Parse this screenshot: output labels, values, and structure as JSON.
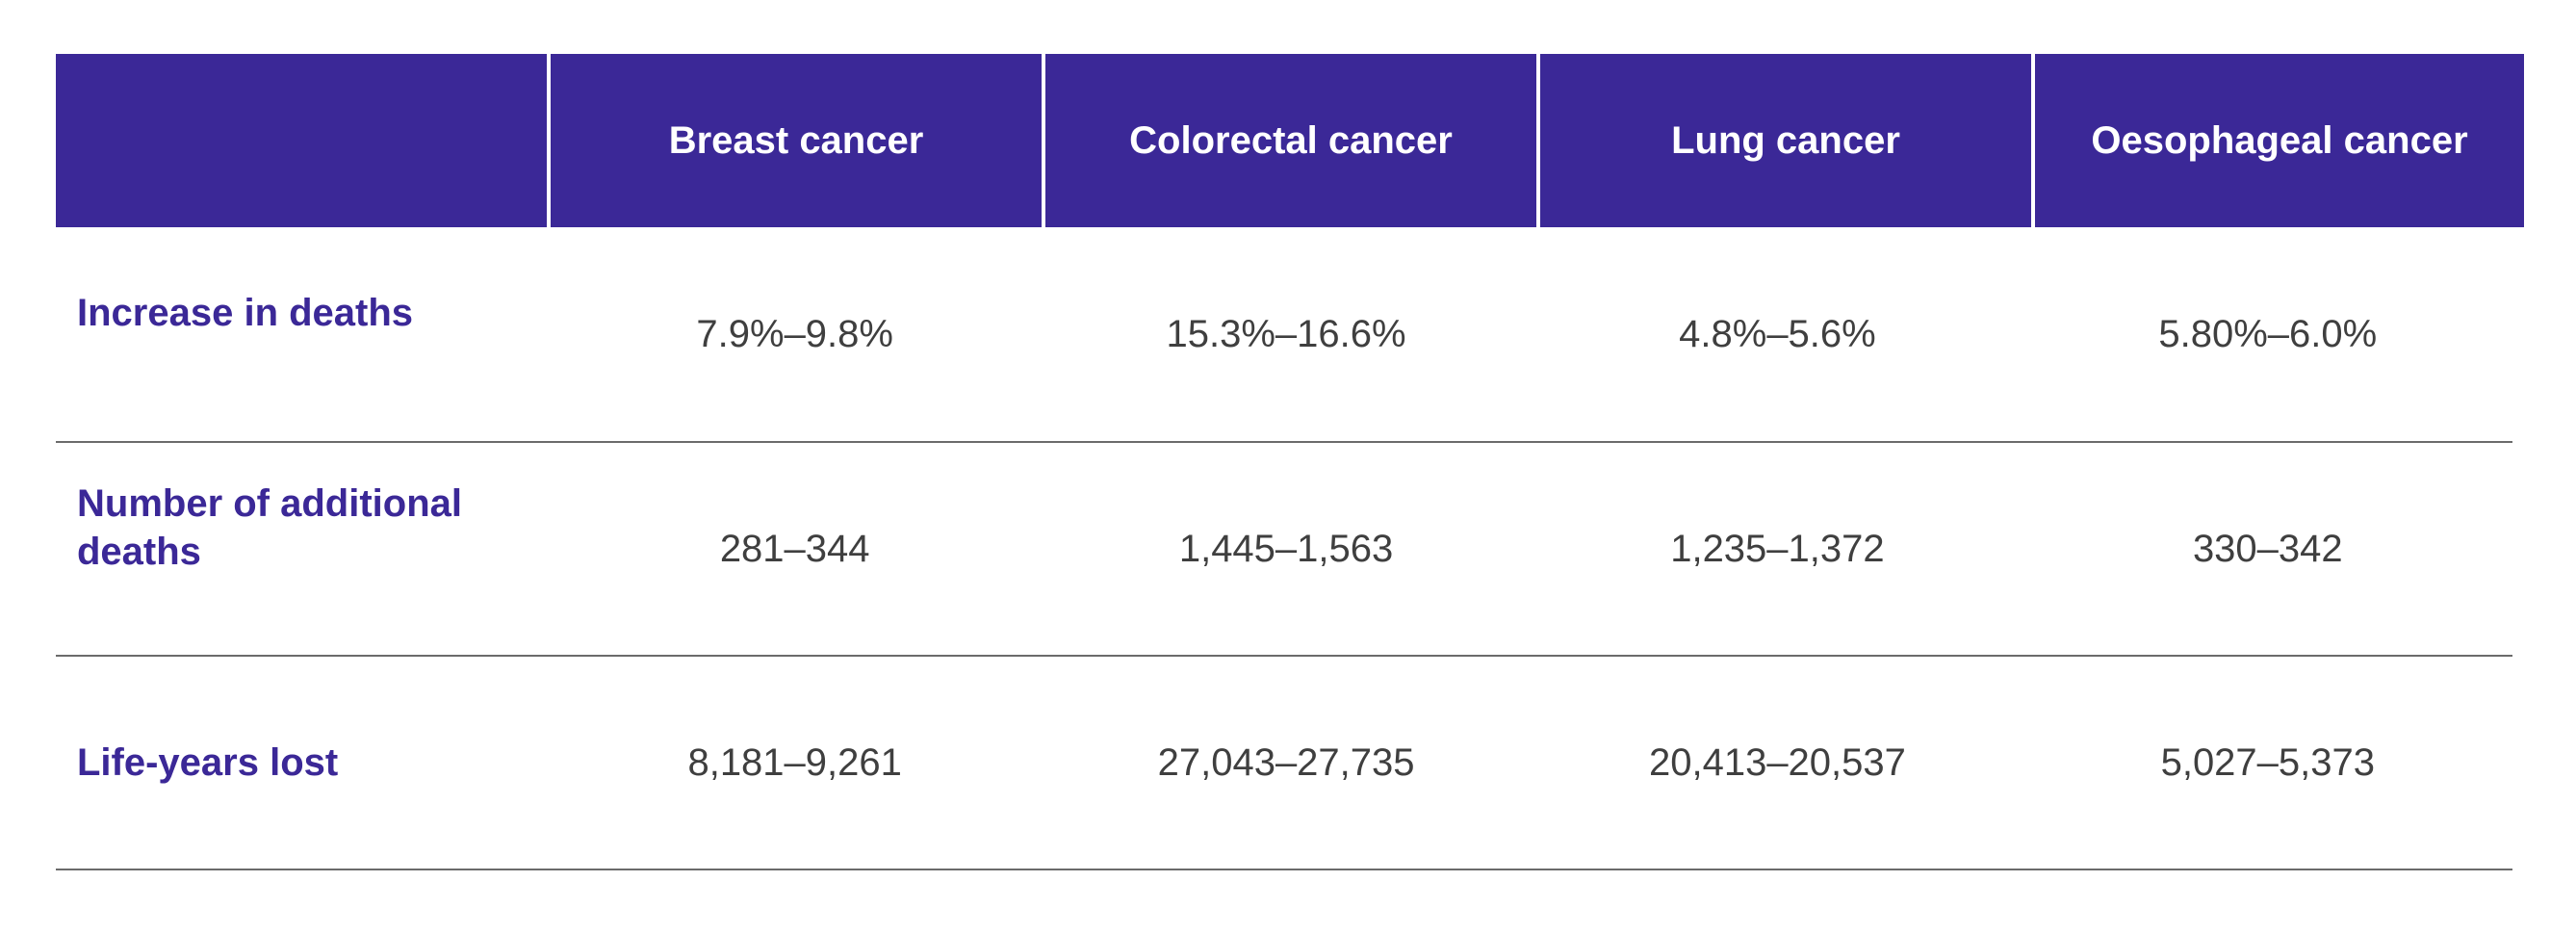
{
  "table": {
    "columns": [
      "",
      "Breast cancer",
      "Colorectal cancer",
      "Lung cancer",
      "Oesophageal cancer"
    ],
    "rows": [
      {
        "label": "Increase in deaths",
        "values": [
          "7.9%–9.8%",
          "15.3%–16.6%",
          "4.8%–5.6%",
          "5.80%–6.0%"
        ]
      },
      {
        "label": "Number of additional deaths",
        "values": [
          "281–344",
          "1,445–1,563",
          "1,235–1,372",
          "330–342"
        ]
      },
      {
        "label": "Life-years lost",
        "values": [
          "8,181–9,261",
          "27,043–27,735",
          "20,413–20,537",
          "5,027–5,373"
        ]
      }
    ]
  },
  "colors": {
    "header_bg": "#3b2897",
    "row_label": "#3b2897",
    "cell_text": "#3f3f3f",
    "divider": "#6b6b6b"
  }
}
